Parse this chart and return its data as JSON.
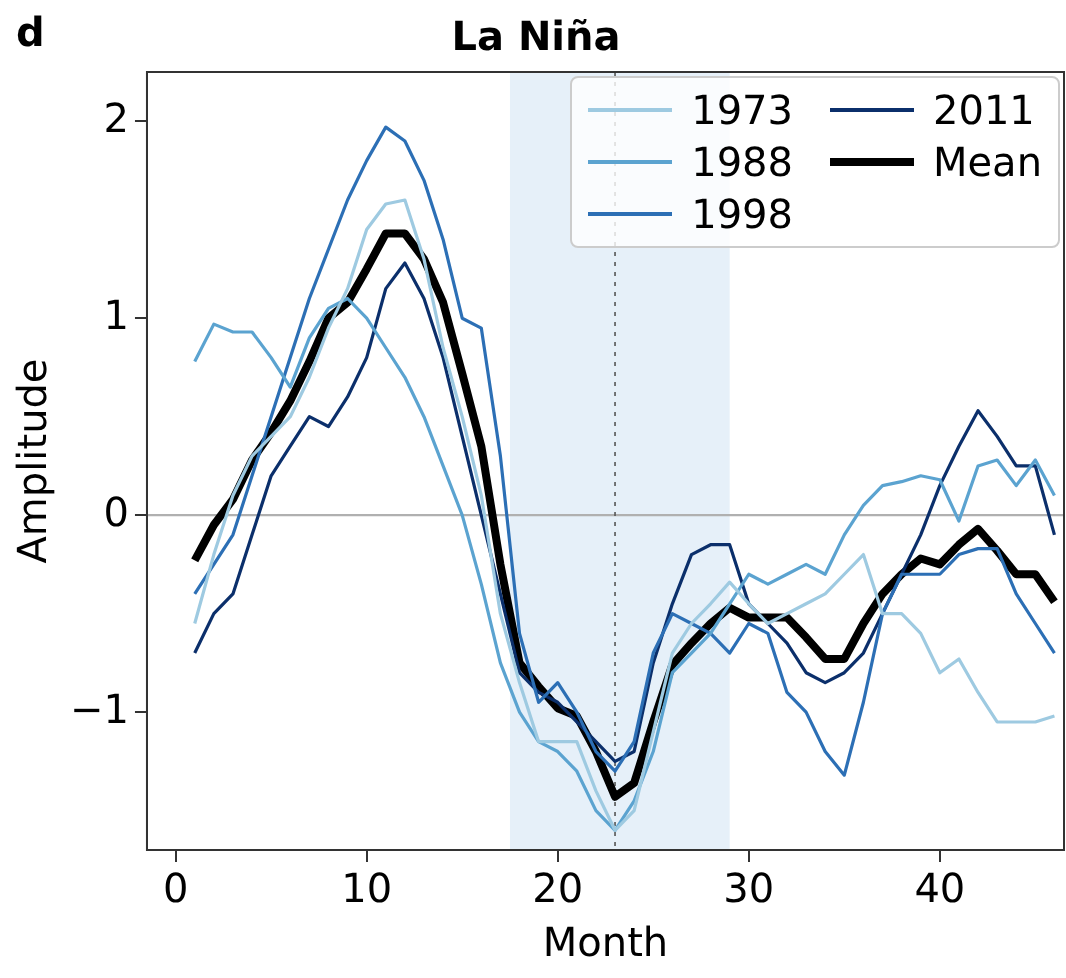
{
  "chart_data": {
    "type": "line",
    "title": "La Niña",
    "xlabel": "Month",
    "ylabel": "Amplitude",
    "annotations": [
      "d"
    ],
    "x": [
      1,
      2,
      3,
      4,
      5,
      6,
      7,
      8,
      9,
      10,
      11,
      12,
      13,
      14,
      15,
      16,
      17,
      18,
      19,
      20,
      21,
      22,
      23,
      24,
      25,
      26,
      27,
      28,
      29,
      30,
      31,
      32,
      33,
      34,
      35,
      36,
      37,
      38,
      39,
      40,
      41,
      42,
      43,
      44,
      45,
      46
    ],
    "series": [
      {
        "name": "1973",
        "color": "#9ecae1",
        "values": [
          -0.55,
          -0.2,
          0.1,
          0.3,
          0.4,
          0.5,
          0.7,
          0.95,
          1.15,
          1.45,
          1.58,
          1.6,
          1.3,
          0.85,
          0.5,
          0.1,
          -0.5,
          -0.85,
          -1.15,
          -1.15,
          -1.15,
          -1.4,
          -1.6,
          -1.5,
          -1.1,
          -0.7,
          -0.55,
          -0.45,
          -0.34,
          -0.45,
          -0.55,
          -0.5,
          -0.45,
          -0.4,
          -0.3,
          -0.2,
          -0.5,
          -0.5,
          -0.6,
          -0.8,
          -0.73,
          -0.9,
          -1.05,
          -1.05,
          -1.05,
          -1.02
        ]
      },
      {
        "name": "1988",
        "color": "#5ba3d0",
        "values": [
          0.78,
          0.97,
          0.93,
          0.93,
          0.8,
          0.65,
          0.9,
          1.05,
          1.1,
          1.0,
          0.85,
          0.7,
          0.5,
          0.25,
          0.0,
          -0.35,
          -0.75,
          -1.0,
          -1.15,
          -1.2,
          -1.3,
          -1.5,
          -1.6,
          -1.45,
          -1.2,
          -0.8,
          -0.7,
          -0.6,
          -0.45,
          -0.3,
          -0.35,
          -0.3,
          -0.25,
          -0.3,
          -0.1,
          0.05,
          0.15,
          0.17,
          0.2,
          0.18,
          -0.03,
          0.25,
          0.28,
          0.15,
          0.28,
          0.1
        ]
      },
      {
        "name": "1998",
        "color": "#2c6fb5",
        "values": [
          -0.4,
          -0.25,
          -0.1,
          0.2,
          0.5,
          0.8,
          1.1,
          1.35,
          1.6,
          1.8,
          1.97,
          1.9,
          1.7,
          1.4,
          1.0,
          0.95,
          0.3,
          -0.6,
          -0.95,
          -0.85,
          -1.0,
          -1.2,
          -1.3,
          -1.15,
          -0.7,
          -0.5,
          -0.55,
          -0.6,
          -0.7,
          -0.55,
          -0.6,
          -0.9,
          -1.0,
          -1.2,
          -1.32,
          -0.95,
          -0.5,
          -0.3,
          -0.3,
          -0.3,
          -0.2,
          -0.17,
          -0.17,
          -0.4,
          -0.55,
          -0.7
        ]
      },
      {
        "name": "2011",
        "color": "#0b2f6b",
        "values": [
          -0.7,
          -0.5,
          -0.4,
          -0.1,
          0.2,
          0.35,
          0.5,
          0.45,
          0.6,
          0.8,
          1.15,
          1.28,
          1.1,
          0.8,
          0.4,
          0.0,
          -0.4,
          -0.8,
          -0.9,
          -0.95,
          -1.05,
          -1.15,
          -1.25,
          -1.2,
          -0.75,
          -0.45,
          -0.2,
          -0.15,
          -0.15,
          -0.45,
          -0.55,
          -0.65,
          -0.8,
          -0.85,
          -0.8,
          -0.7,
          -0.5,
          -0.3,
          -0.1,
          0.15,
          0.35,
          0.53,
          0.4,
          0.25,
          0.25,
          -0.1
        ]
      },
      {
        "name": "Mean",
        "color": "#000000",
        "values": [
          -0.23,
          -0.05,
          0.08,
          0.28,
          0.42,
          0.58,
          0.78,
          1.0,
          1.08,
          1.25,
          1.43,
          1.43,
          1.3,
          1.08,
          0.72,
          0.35,
          -0.25,
          -0.75,
          -0.87,
          -0.98,
          -1.02,
          -1.2,
          -1.43,
          -1.36,
          -1.05,
          -0.76,
          -0.65,
          -0.55,
          -0.47,
          -0.52,
          -0.52,
          -0.52,
          -0.62,
          -0.73,
          -0.73,
          -0.55,
          -0.4,
          -0.3,
          -0.22,
          -0.25,
          -0.15,
          -0.07,
          -0.18,
          -0.3,
          -0.3,
          -0.44
        ]
      }
    ],
    "xlim": [
      -1.5,
      46.5
    ],
    "xticks": [
      0,
      10,
      20,
      30,
      40
    ],
    "ylim": [
      -1.7,
      2.25
    ],
    "yticks": [
      {
        "value": -1,
        "label": "−1"
      },
      0,
      1,
      2
    ],
    "ref_lines": [
      {
        "axis": "y",
        "value": 0,
        "color": "#b0b0b0"
      },
      {
        "axis": "x",
        "value": 23,
        "color": "#555555",
        "line_style": "dotted"
      }
    ],
    "bands": [
      {
        "axis": "x",
        "from": 17.5,
        "to": 29,
        "color": "#e6f0f9"
      }
    ],
    "grid": false,
    "legend": "top right",
    "marker": "none",
    "line_style": "solid"
  }
}
